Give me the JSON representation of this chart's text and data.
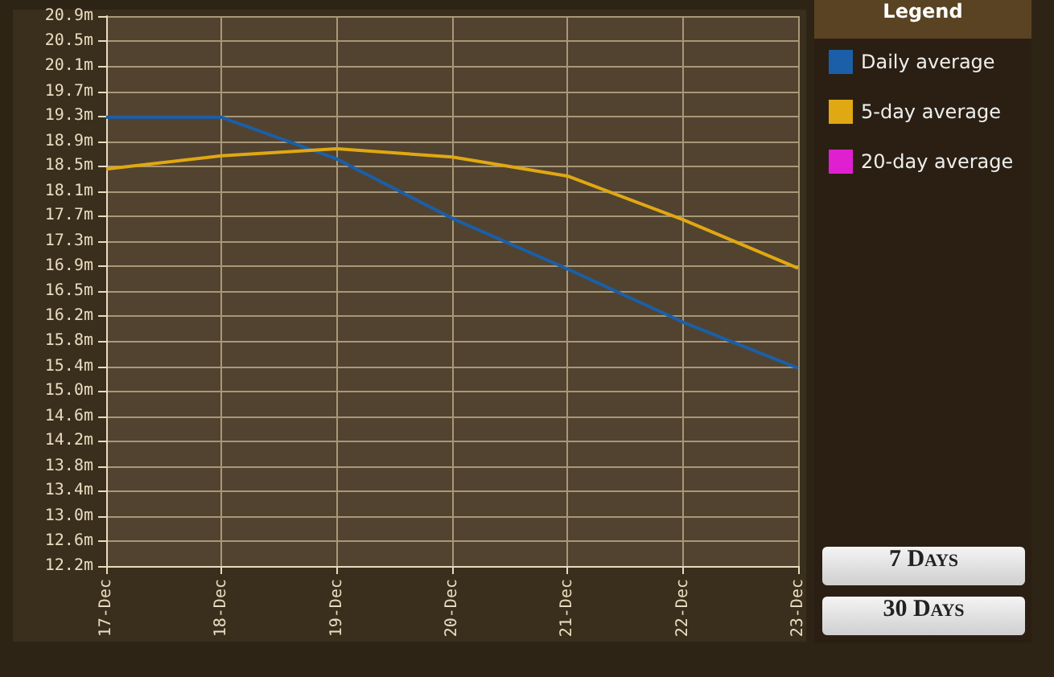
{
  "chart_data": {
    "type": "line",
    "legend_title": "Legend",
    "categories": [
      "17-Dec",
      "18-Dec",
      "19-Dec",
      "20-Dec",
      "21-Dec",
      "22-Dec",
      "23-Dec"
    ],
    "series": [
      {
        "name": "Daily average",
        "color": "#1a5fa8",
        "values": [
          19.3,
          19.3,
          18.64,
          17.7,
          16.9,
          16.06,
          15.33
        ]
      },
      {
        "name": "5-day average",
        "color": "#e0a812",
        "values": [
          18.48,
          18.69,
          18.8,
          18.67,
          18.37,
          17.68,
          16.91
        ]
      },
      {
        "name": "20-day average",
        "color": "#e020d0",
        "values": [
          null,
          null,
          null,
          null,
          null,
          null,
          null
        ]
      }
    ],
    "ylim": [
      12.2,
      20.9
    ],
    "yticks": [
      {
        "value": 12.2,
        "label": "12.2m"
      },
      {
        "value": 12.6,
        "label": "12.6m"
      },
      {
        "value": 12.99,
        "label": "13.0m"
      },
      {
        "value": 13.39,
        "label": "13.4m"
      },
      {
        "value": 13.78,
        "label": "13.8m"
      },
      {
        "value": 14.18,
        "label": "14.2m"
      },
      {
        "value": 14.57,
        "label": "14.6m"
      },
      {
        "value": 14.97,
        "label": "15.0m"
      },
      {
        "value": 15.36,
        "label": "15.4m"
      },
      {
        "value": 15.76,
        "label": "15.8m"
      },
      {
        "value": 16.15,
        "label": "16.2m"
      },
      {
        "value": 16.55,
        "label": "16.5m"
      },
      {
        "value": 16.94,
        "label": "16.9m"
      },
      {
        "value": 17.34,
        "label": "17.3m"
      },
      {
        "value": 17.74,
        "label": "17.7m"
      },
      {
        "value": 18.13,
        "label": "18.1m"
      },
      {
        "value": 18.53,
        "label": "18.5m"
      },
      {
        "value": 18.92,
        "label": "18.9m"
      },
      {
        "value": 19.32,
        "label": "19.3m"
      },
      {
        "value": 19.71,
        "label": "19.7m"
      },
      {
        "value": 20.11,
        "label": "20.1m"
      },
      {
        "value": 20.5,
        "label": "20.5m"
      },
      {
        "value": 20.9,
        "label": "20.9m"
      }
    ],
    "grid": true,
    "legend": "top right",
    "marker": "none",
    "line_style": "solid",
    "annotations": [
      "7 Days",
      "30 Days"
    ]
  }
}
